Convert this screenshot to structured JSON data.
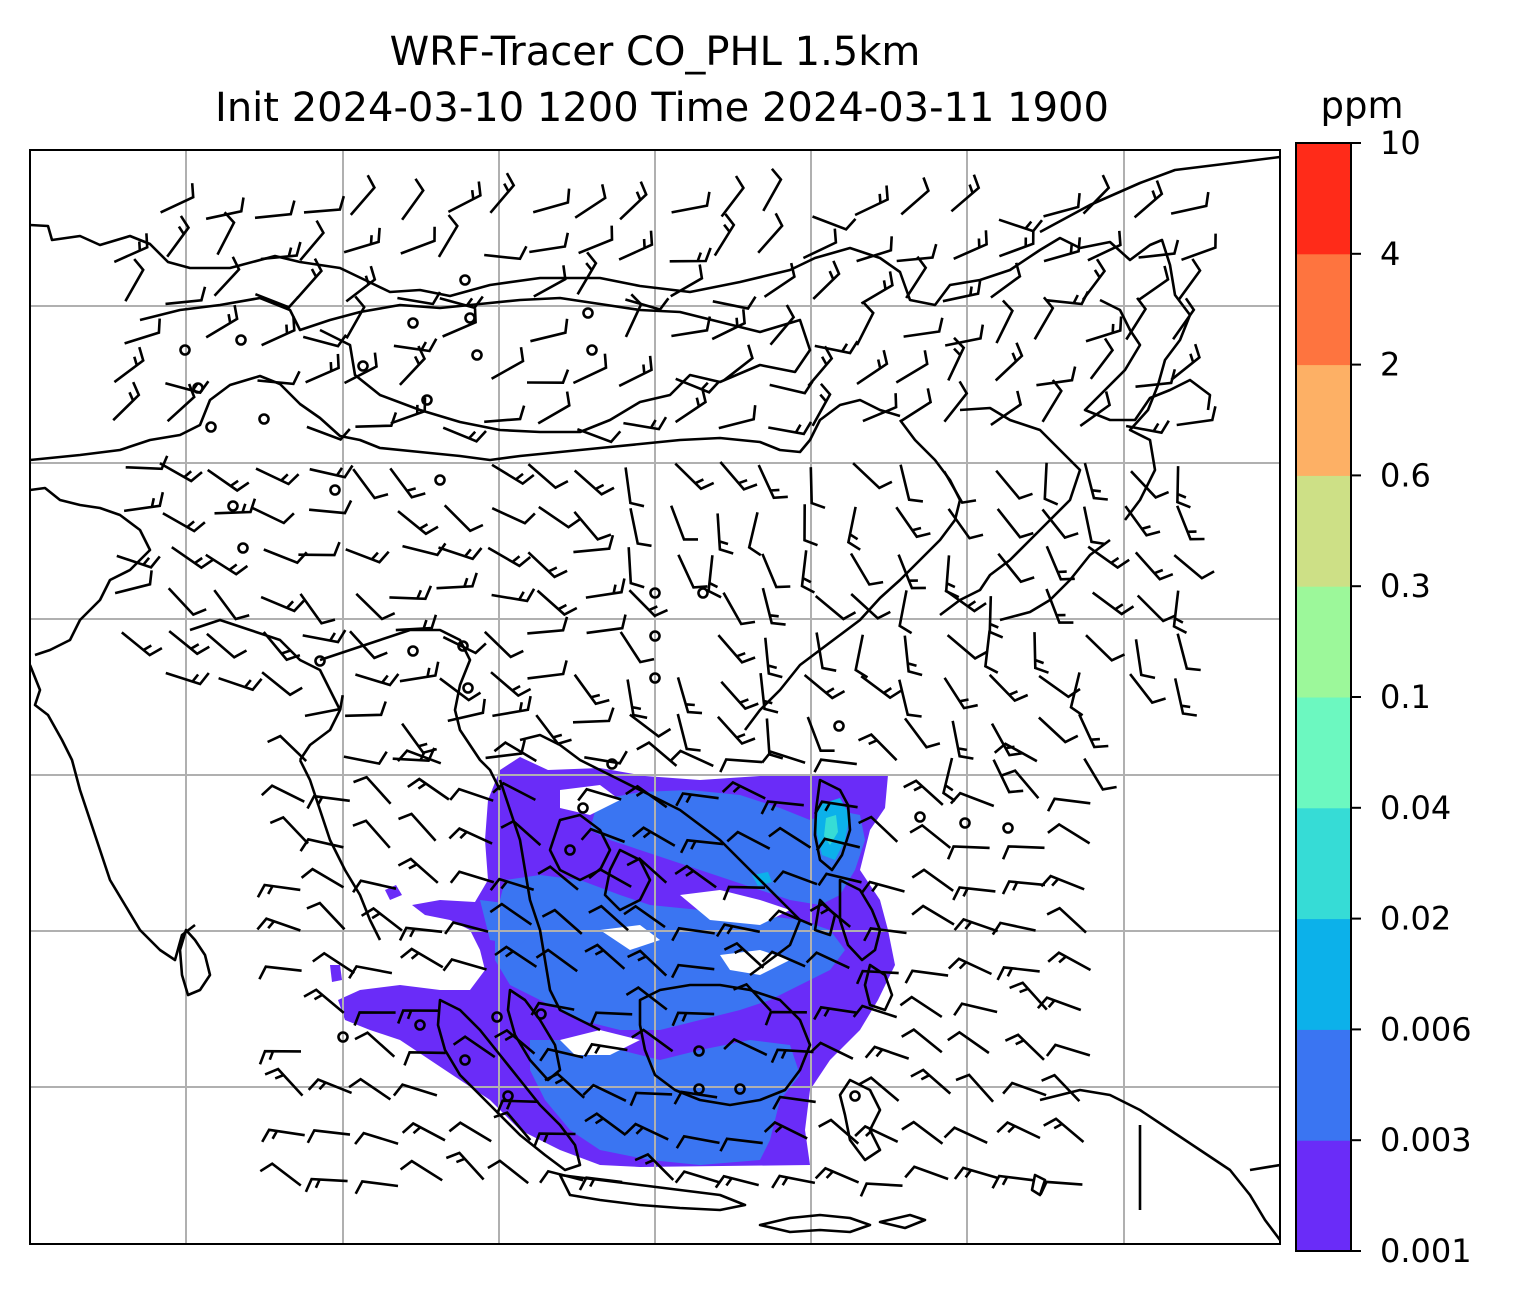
{
  "title": {
    "line1": "WRF-Tracer CO_PHL 1.5km",
    "line2": "Init 2024-03-10 1200 Time 2024-03-11 1900"
  },
  "colorbar": {
    "units": "ppm",
    "levels": [
      "0.001",
      "0.003",
      "0.006",
      "0.02",
      "0.04",
      "0.1",
      "0.3",
      "0.6",
      "2",
      "4",
      "10"
    ],
    "colors": [
      "#6a2cf8",
      "#3a75f2",
      "#0cb1ea",
      "#36dcd6",
      "#6cf8c0",
      "#9cf89a",
      "#cde086",
      "#fdb065",
      "#fe743f",
      "#ff2b19"
    ]
  },
  "map": {
    "gridlines": true,
    "coastline_color": "#000000",
    "gridline_color": "#b0b0b0",
    "plume_colors": {
      "low": "#6a2cf8",
      "mid": "#3a75f2",
      "high": "#0cb1ea",
      "higher": "#36dcd6"
    }
  },
  "chart_data": {
    "type": "heatmap",
    "variable": "CO_PHL tracer concentration",
    "units": "ppm",
    "colorbar_levels": [
      0.001,
      0.003,
      0.006,
      0.02,
      0.04,
      0.1,
      0.3,
      0.6,
      2,
      4,
      10
    ],
    "overlay": "wind barbs",
    "gridlines": true
  }
}
